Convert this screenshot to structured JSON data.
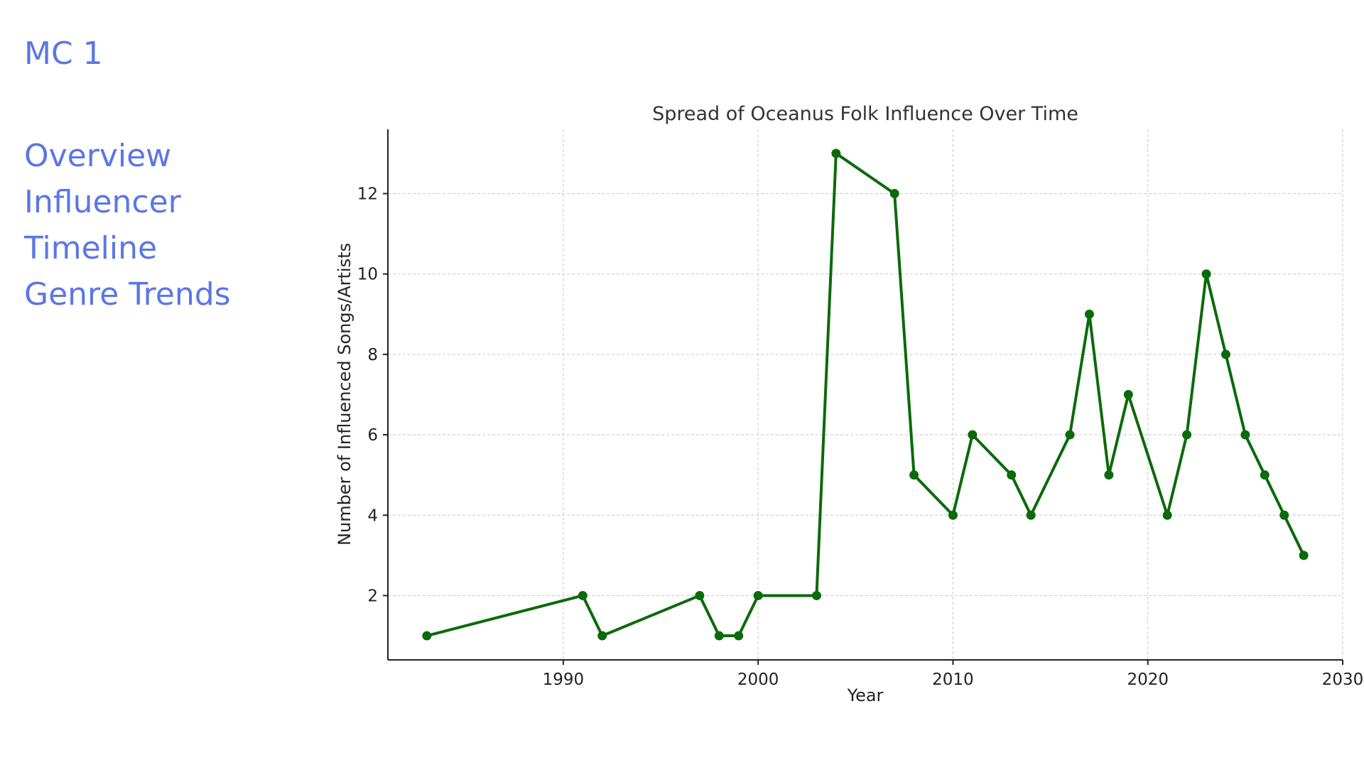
{
  "sidebar": {
    "title": "MC 1",
    "items": [
      {
        "label": "Overview"
      },
      {
        "label": "Influencer"
      },
      {
        "label": "Timeline"
      },
      {
        "label": "Genre Trends"
      }
    ]
  },
  "chart_data": {
    "type": "line",
    "title": "Spread of Oceanus Folk Influence Over Time",
    "xlabel": "Year",
    "ylabel": "Number of Influenced Songs/Artists",
    "xlim": [
      1981,
      2030
    ],
    "ylim": [
      0.4,
      13.6
    ],
    "xticks": [
      1990,
      2000,
      2010,
      2020,
      2030
    ],
    "yticks": [
      2,
      4,
      6,
      8,
      10,
      12
    ],
    "grid": true,
    "line_color": "#0b6a0b",
    "series": [
      {
        "x": [
          1983,
          1991,
          1992,
          1997,
          1998,
          1999,
          2000,
          2003,
          2004,
          2007,
          2008,
          2010,
          2011,
          2013,
          2014,
          2016,
          2017,
          2018,
          2019,
          2021,
          2022,
          2023,
          2024,
          2025,
          2026,
          2027,
          2028
        ],
        "values": [
          1,
          2,
          1,
          2,
          1,
          1,
          2,
          2,
          13,
          12,
          5,
          4,
          6,
          5,
          4,
          6,
          9,
          5,
          7,
          4,
          6,
          10,
          8,
          6,
          5,
          4,
          3
        ]
      }
    ]
  }
}
